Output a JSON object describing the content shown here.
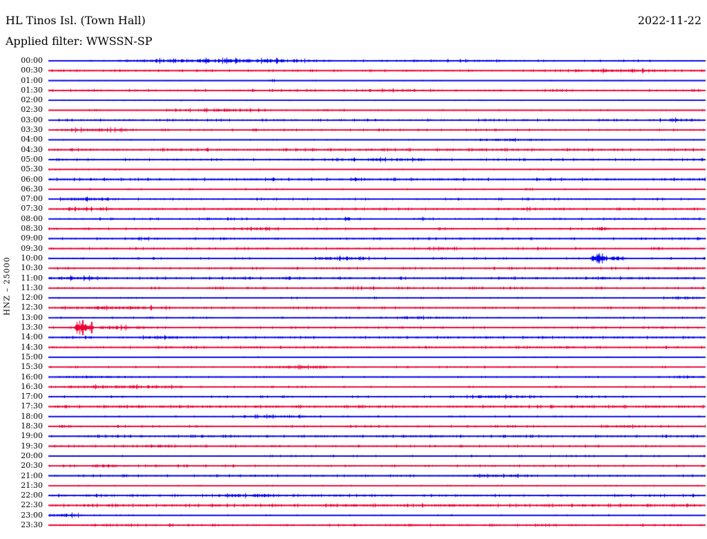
{
  "header": {
    "station": "HL Tinos Isl. (Town Hall)",
    "date": "2022-11-22",
    "filter": "Applied filter: WWSSN-SP"
  },
  "axis": {
    "label": "HNZ – 25000"
  },
  "colors": {
    "background": "#ffffff",
    "text": "#000000",
    "blue": "#0000ee",
    "red": "#ee0033"
  },
  "chart_data": {
    "type": "line",
    "title": "HL Tinos Isl. (Town Hall) helicorder, 2022-11-22, filter WWSSN-SP",
    "ylabel": "HNZ – 25000",
    "channel": "HNZ",
    "amplitude_scale": 25000,
    "row_interval_minutes": 30,
    "grid": false,
    "legend": false,
    "rows": [
      {
        "time": "00:00",
        "color": "blue",
        "base": 0.9,
        "bursts": [
          [
            0.09,
            0.43,
            3.2
          ],
          [
            0.43,
            0.78,
            1.8
          ],
          [
            0.78,
            1.0,
            1.4
          ]
        ]
      },
      {
        "time": "00:30",
        "color": "red",
        "base": 1.4,
        "bursts": [
          [
            0.78,
            0.94,
            2.6
          ]
        ]
      },
      {
        "time": "01:00",
        "color": "blue",
        "base": 0.7,
        "bursts": [
          [
            0.33,
            0.35,
            1.5
          ]
        ]
      },
      {
        "time": "01:30",
        "color": "red",
        "base": 1.5,
        "bursts": [
          [
            0.47,
            0.6,
            2.2
          ]
        ]
      },
      {
        "time": "02:00",
        "color": "blue",
        "base": 0.7,
        "bursts": [
          [
            0.18,
            0.21,
            1.4
          ]
        ]
      },
      {
        "time": "02:30",
        "color": "red",
        "base": 1.0,
        "bursts": [
          [
            0.17,
            0.35,
            2.4
          ],
          [
            0.35,
            0.5,
            1.4
          ]
        ]
      },
      {
        "time": "03:00",
        "color": "blue",
        "base": 1.5,
        "bursts": [
          [
            0.92,
            1.0,
            2.6
          ]
        ]
      },
      {
        "time": "03:30",
        "color": "red",
        "base": 1.3,
        "bursts": [
          [
            0.0,
            0.14,
            2.8
          ]
        ]
      },
      {
        "time": "04:00",
        "color": "blue",
        "base": 0.8,
        "bursts": [
          [
            0.63,
            0.77,
            2.0
          ]
        ]
      },
      {
        "time": "04:30",
        "color": "red",
        "base": 1.8,
        "bursts": []
      },
      {
        "time": "05:00",
        "color": "blue",
        "base": 1.5,
        "bursts": [
          [
            0.42,
            0.62,
            2.4
          ]
        ]
      },
      {
        "time": "05:30",
        "color": "red",
        "base": 0.9,
        "bursts": []
      },
      {
        "time": "06:00",
        "color": "blue",
        "base": 1.8,
        "bursts": []
      },
      {
        "time": "06:30",
        "color": "red",
        "base": 1.0,
        "bursts": [
          [
            0.72,
            0.75,
            2.0
          ]
        ]
      },
      {
        "time": "07:00",
        "color": "blue",
        "base": 1.4,
        "bursts": [
          [
            0.0,
            0.13,
            2.6
          ]
        ]
      },
      {
        "time": "07:30",
        "color": "red",
        "base": 1.5,
        "bursts": [
          [
            0.02,
            0.12,
            2.4
          ],
          [
            0.65,
            0.78,
            2.2
          ]
        ]
      },
      {
        "time": "08:00",
        "color": "blue",
        "base": 1.4,
        "bursts": [
          [
            0.45,
            0.46,
            4.0
          ],
          [
            0.56,
            0.57,
            3.5
          ]
        ]
      },
      {
        "time": "08:30",
        "color": "red",
        "base": 1.5,
        "bursts": [
          [
            0.25,
            0.37,
            2.2
          ],
          [
            0.83,
            0.85,
            3.0
          ]
        ]
      },
      {
        "time": "09:00",
        "color": "blue",
        "base": 1.4,
        "bursts": [
          [
            0.11,
            0.2,
            2.0
          ],
          [
            0.26,
            0.27,
            3.0
          ],
          [
            0.87,
            0.96,
            2.0
          ]
        ]
      },
      {
        "time": "09:30",
        "color": "red",
        "base": 1.5,
        "bursts": [
          [
            0.55,
            0.64,
            2.0
          ],
          [
            0.91,
            0.93,
            2.4
          ],
          [
            0.96,
            0.98,
            2.4
          ]
        ]
      },
      {
        "time": "10:00",
        "color": "blue",
        "base": 1.2,
        "bursts": [
          [
            0.4,
            0.5,
            2.8
          ],
          [
            0.825,
            0.85,
            8.0
          ],
          [
            0.85,
            0.88,
            3.0
          ]
        ]
      },
      {
        "time": "10:30",
        "color": "red",
        "base": 1.5,
        "bursts": [
          [
            0.92,
            1.0,
            2.4
          ]
        ]
      },
      {
        "time": "11:00",
        "color": "blue",
        "base": 1.6,
        "bursts": [
          [
            0.0,
            0.1,
            2.8
          ],
          [
            0.8,
            0.95,
            2.0
          ]
        ]
      },
      {
        "time": "11:30",
        "color": "red",
        "base": 1.5,
        "bursts": [
          [
            0.42,
            0.52,
            2.2
          ]
        ]
      },
      {
        "time": "12:00",
        "color": "blue",
        "base": 0.9,
        "bursts": [
          [
            0.36,
            0.38,
            1.6
          ],
          [
            0.49,
            0.51,
            1.6
          ],
          [
            0.93,
            1.0,
            2.4
          ]
        ]
      },
      {
        "time": "12:30",
        "color": "red",
        "base": 1.4,
        "bursts": [
          [
            0.0,
            0.22,
            2.6
          ]
        ]
      },
      {
        "time": "13:00",
        "color": "blue",
        "base": 1.2,
        "bursts": [
          [
            0.15,
            0.16,
            2.6
          ],
          [
            0.49,
            0.63,
            2.2
          ]
        ]
      },
      {
        "time": "13:30",
        "color": "red",
        "base": 1.4,
        "bursts": [
          [
            0.038,
            0.07,
            7.5
          ],
          [
            0.07,
            0.16,
            3.0
          ]
        ]
      },
      {
        "time": "14:00",
        "color": "blue",
        "base": 1.6,
        "bursts": [
          [
            0.12,
            0.21,
            2.4
          ]
        ]
      },
      {
        "time": "14:30",
        "color": "red",
        "base": 1.5,
        "bursts": [
          [
            0.74,
            0.81,
            2.2
          ]
        ]
      },
      {
        "time": "15:00",
        "color": "blue",
        "base": 0.8,
        "bursts": []
      },
      {
        "time": "15:30",
        "color": "red",
        "base": 1.2,
        "bursts": [
          [
            0.31,
            0.45,
            2.4
          ]
        ]
      },
      {
        "time": "16:00",
        "color": "blue",
        "base": 1.0,
        "bursts": [
          [
            0.0,
            0.12,
            1.8
          ],
          [
            0.95,
            1.0,
            2.4
          ]
        ]
      },
      {
        "time": "16:30",
        "color": "red",
        "base": 1.2,
        "bursts": [
          [
            0.0,
            0.23,
            2.6
          ]
        ]
      },
      {
        "time": "17:00",
        "color": "blue",
        "base": 1.3,
        "bursts": [
          [
            0.62,
            0.75,
            2.4
          ]
        ]
      },
      {
        "time": "17:30",
        "color": "red",
        "base": 1.8,
        "bursts": []
      },
      {
        "time": "18:00",
        "color": "blue",
        "base": 1.0,
        "bursts": [
          [
            0.27,
            0.42,
            2.3
          ]
        ]
      },
      {
        "time": "18:30",
        "color": "red",
        "base": 1.4,
        "bursts": [
          [
            0.82,
            0.94,
            2.2
          ]
        ]
      },
      {
        "time": "19:00",
        "color": "blue",
        "base": 1.6,
        "bursts": []
      },
      {
        "time": "19:30",
        "color": "red",
        "base": 1.4,
        "bursts": [
          [
            0.13,
            0.2,
            2.4
          ],
          [
            0.26,
            0.29,
            2.0
          ]
        ]
      },
      {
        "time": "20:00",
        "color": "blue",
        "base": 1.1,
        "bursts": []
      },
      {
        "time": "20:30",
        "color": "red",
        "base": 1.4,
        "bursts": [
          [
            0.05,
            0.12,
            2.5
          ]
        ]
      },
      {
        "time": "21:00",
        "color": "blue",
        "base": 1.4,
        "bursts": [
          [
            0.62,
            0.76,
            2.2
          ]
        ]
      },
      {
        "time": "21:30",
        "color": "red",
        "base": 0.9,
        "bursts": []
      },
      {
        "time": "22:00",
        "color": "blue",
        "base": 1.7,
        "bursts": [
          [
            0.24,
            0.38,
            2.6
          ]
        ]
      },
      {
        "time": "22:30",
        "color": "red",
        "base": 1.9,
        "bursts": []
      },
      {
        "time": "23:00",
        "color": "blue",
        "base": 0.9,
        "bursts": [
          [
            0.0,
            0.055,
            2.8
          ]
        ]
      },
      {
        "time": "23:30",
        "color": "red",
        "base": 1.6,
        "bursts": [
          [
            0.49,
            0.58,
            2.2
          ]
        ]
      }
    ]
  }
}
